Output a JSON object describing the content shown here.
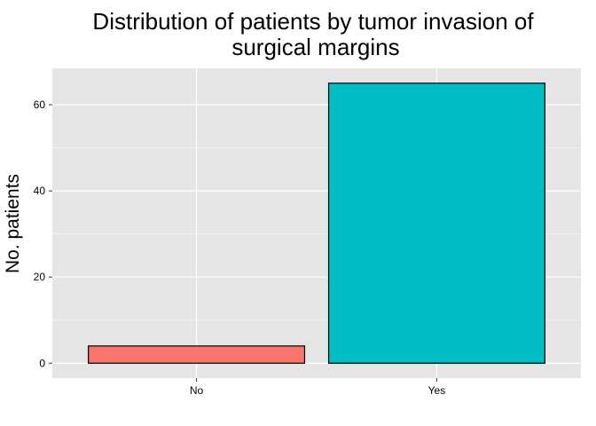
{
  "chart_data": {
    "type": "bar",
    "title_lines": [
      "Distribution of patients by tumor invasion of",
      "surgical margins"
    ],
    "xlabel": "",
    "ylabel": "No. patients",
    "categories": [
      "No",
      "Yes"
    ],
    "values": [
      4,
      65
    ],
    "ylim": [
      -3.45,
      68.45
    ],
    "yticks": [
      0,
      20,
      40,
      60
    ],
    "ytick_labels": [
      "0",
      "20",
      "40",
      "60"
    ],
    "grid": true,
    "colors": {
      "panel_bg": "#E5E5E5",
      "grid_major": "#FFFFFF",
      "grid_minor": "#F2F2F2",
      "bar_fills": [
        "#F8766D",
        "#00BFC4"
      ],
      "bar_stroke": "#000000"
    }
  }
}
